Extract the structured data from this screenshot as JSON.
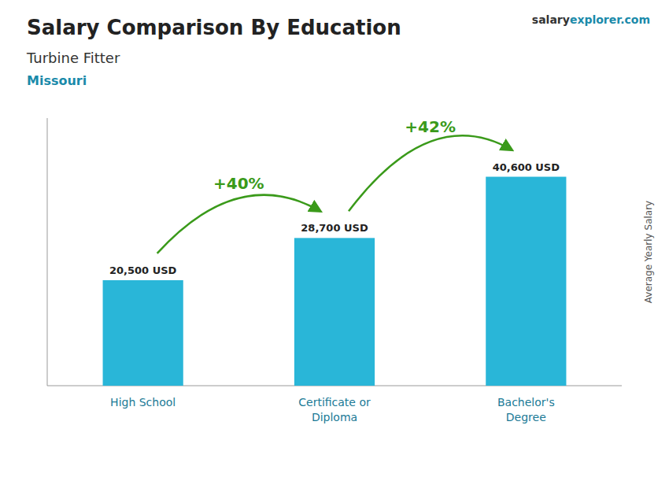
{
  "chart_data": {
    "type": "bar",
    "title": "Salary Comparison By Education",
    "subtitle": [
      "Turbine Fitter",
      "Missouri"
    ],
    "source": [
      "salary",
      "explorer.com"
    ],
    "categories": [
      "High School",
      "Certificate or\nDiploma",
      "Bachelor's\nDegree"
    ],
    "values": [
      20500,
      28700,
      40600
    ],
    "value_labels": [
      "20,500 USD",
      "28,700 USD",
      "40,600 USD"
    ],
    "data_labels": true,
    "color": "#29b6d8",
    "annotations": [
      "+40%",
      "+42%"
    ],
    "ylabel": "Average Yearly Salary",
    "ylim": [
      0,
      52000
    ],
    "tick_labels": "x",
    "grid": false
  }
}
